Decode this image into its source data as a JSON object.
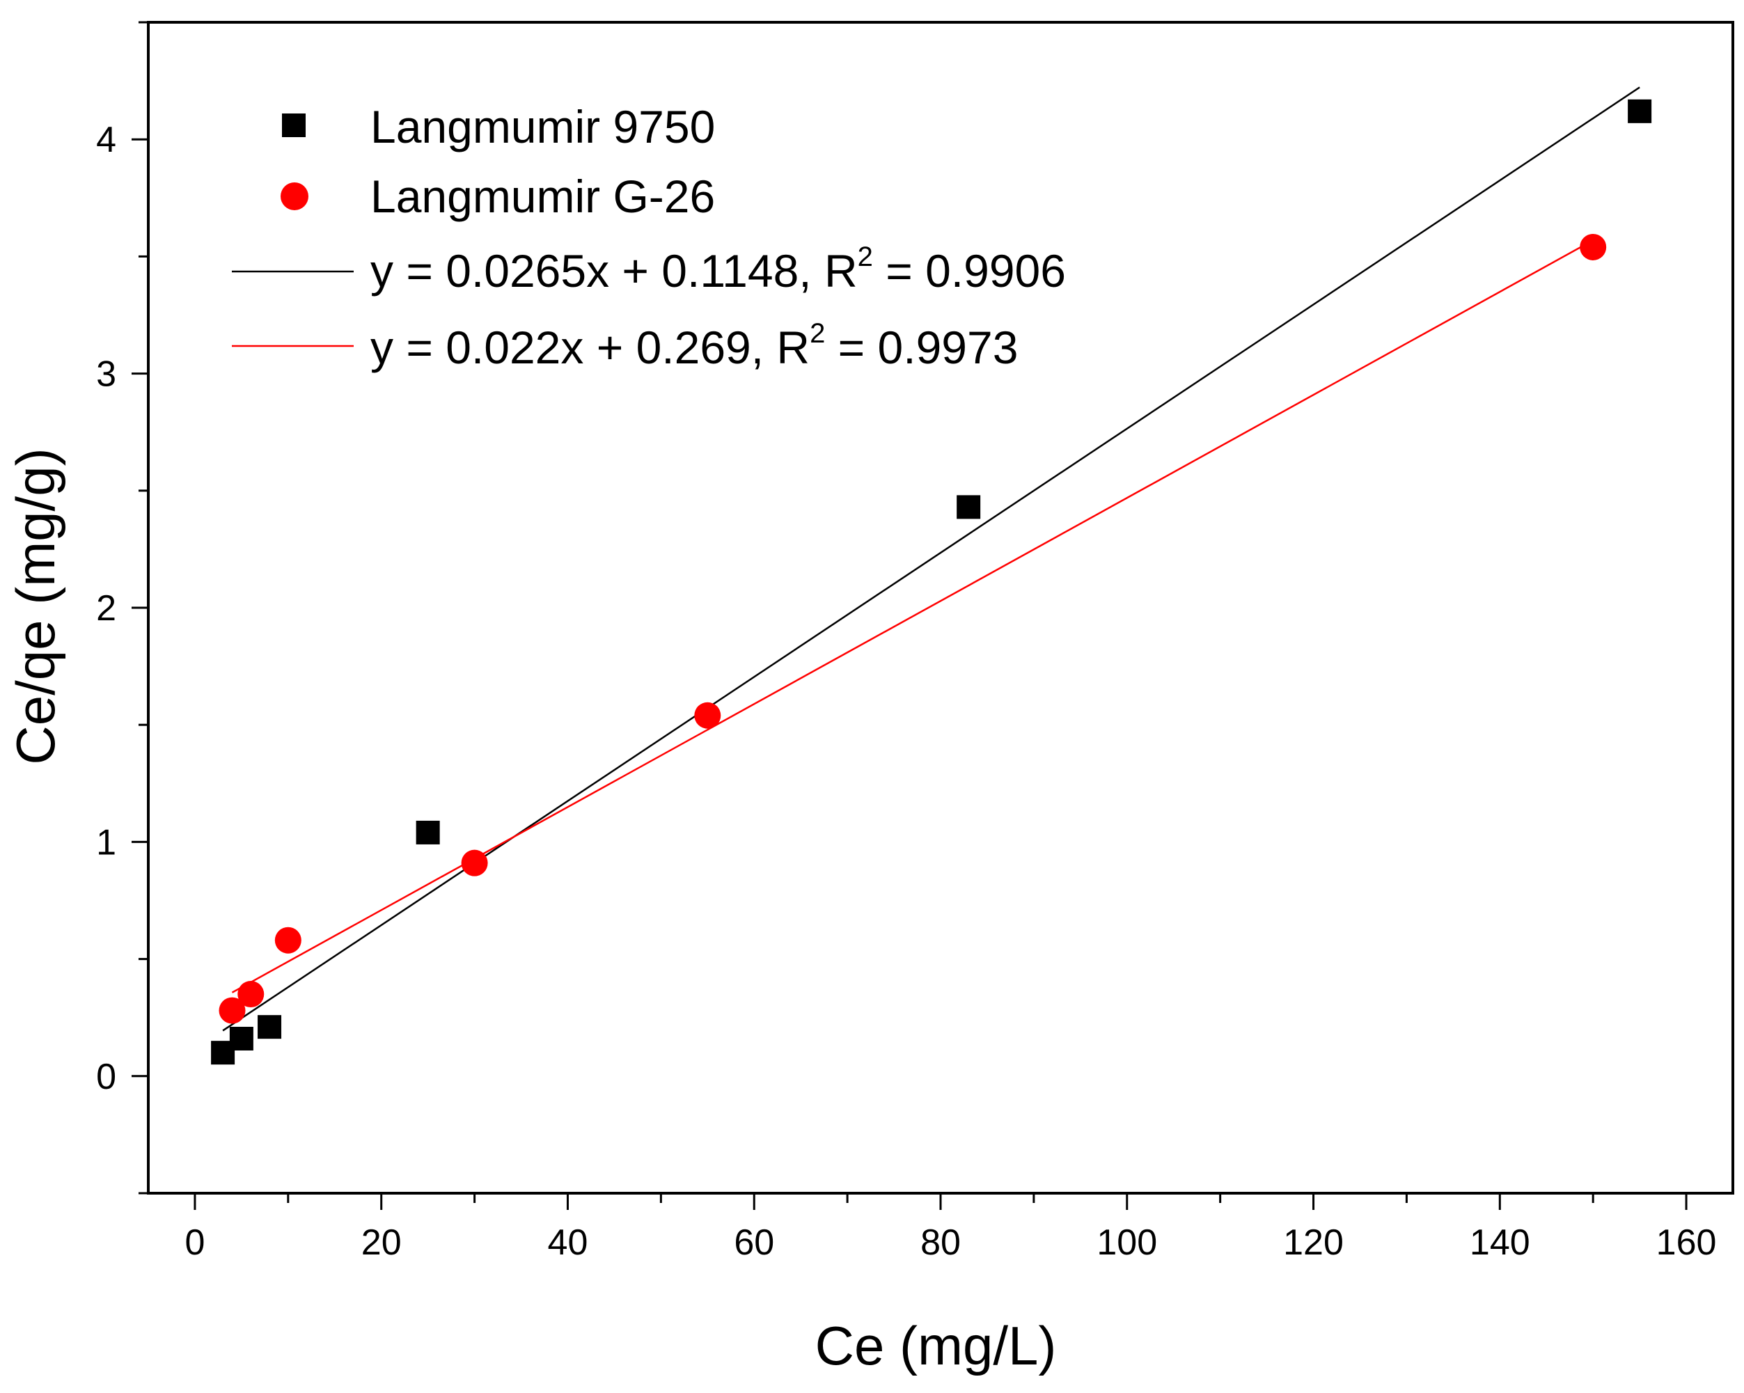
{
  "chart_data": {
    "type": "scatter",
    "xlabel": "Ce (mg/L)",
    "ylabel": "Ce/qe (mg/g)",
    "xlim": [
      -5,
      165
    ],
    "ylim": [
      -0.5,
      4.5
    ],
    "x_ticks": [
      0,
      20,
      40,
      60,
      80,
      100,
      120,
      140,
      160
    ],
    "x_tick_labels": [
      "0",
      "20",
      "40",
      "60",
      "80",
      "100",
      "120",
      "140",
      "160"
    ],
    "y_ticks": [
      0,
      1,
      2,
      3,
      4
    ],
    "y_tick_labels": [
      "0",
      "1",
      "2",
      "3",
      "4"
    ],
    "grid": false,
    "legend_position": "top-left",
    "series": [
      {
        "name": "Langmumir 9750",
        "marker": "square",
        "color": "#000000",
        "x": [
          3,
          5,
          8,
          25,
          83,
          155
        ],
        "y": [
          0.1,
          0.16,
          0.21,
          1.04,
          2.43,
          4.12
        ]
      },
      {
        "name": "Langmumir G-26",
        "marker": "circle",
        "color": "#ff0000",
        "x": [
          4,
          6,
          10,
          30,
          55,
          150
        ],
        "y": [
          0.28,
          0.35,
          0.58,
          0.91,
          1.54,
          3.54
        ]
      }
    ],
    "fits": [
      {
        "label_main": "y = 0.0265x + 0.1148, R",
        "label_sup": "2",
        "label_end": " = 0.9906",
        "color": "#000000",
        "slope": 0.0265,
        "intercept": 0.1148,
        "x_range": [
          3,
          155
        ]
      },
      {
        "label_main": "y = 0.022x + 0.269, R",
        "label_sup": "2",
        "label_end": " = 0.9973",
        "color": "#ff0000",
        "slope": 0.022,
        "intercept": 0.269,
        "x_range": [
          4,
          150
        ]
      }
    ]
  }
}
